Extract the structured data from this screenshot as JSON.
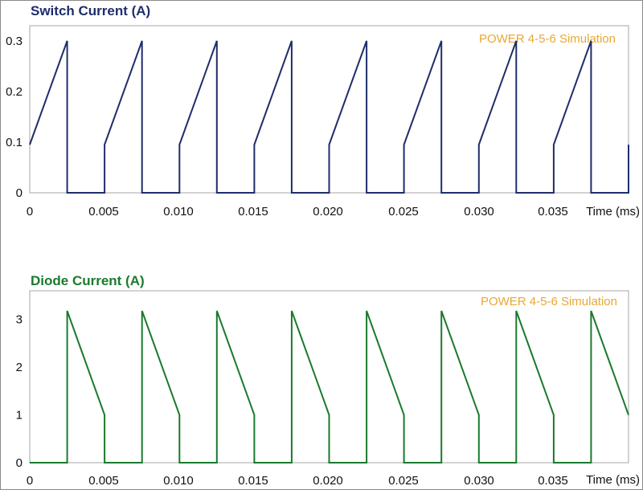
{
  "chart_data": [
    {
      "type": "line",
      "title": "Switch Current (A)",
      "watermark": "POWER 4-5-6 Simulation",
      "xlabel": "Time (ms)",
      "ylabel": "",
      "xlim": [
        0,
        0.04
      ],
      "ylim": [
        0,
        0.33
      ],
      "x_ticks": [
        "0",
        "0.005",
        "0.010",
        "0.015",
        "0.020",
        "0.025",
        "0.030",
        "0.035"
      ],
      "y_ticks": [
        "0",
        "0.1",
        "0.2",
        "0.3"
      ],
      "grid": false,
      "colors": {
        "title": "#1f2d6b",
        "line": "#1f2d6b",
        "watermark": "#e8a832"
      },
      "series": [
        {
          "points": [
            [
              0,
              0.095
            ],
            [
              0.0025,
              0.3
            ],
            [
              0.0025,
              0
            ],
            [
              0.005,
              0
            ],
            [
              0.005,
              0.095
            ],
            [
              0.0075,
              0.3
            ],
            [
              0.0075,
              0
            ],
            [
              0.01,
              0
            ],
            [
              0.01,
              0.095
            ],
            [
              0.0125,
              0.3
            ],
            [
              0.0125,
              0
            ],
            [
              0.015,
              0
            ],
            [
              0.015,
              0.095
            ],
            [
              0.0175,
              0.3
            ],
            [
              0.0175,
              0
            ],
            [
              0.02,
              0
            ],
            [
              0.02,
              0.095
            ],
            [
              0.0225,
              0.3
            ],
            [
              0.0225,
              0
            ],
            [
              0.025,
              0
            ],
            [
              0.025,
              0.095
            ],
            [
              0.0275,
              0.3
            ],
            [
              0.0275,
              0
            ],
            [
              0.03,
              0
            ],
            [
              0.03,
              0.095
            ],
            [
              0.0325,
              0.3
            ],
            [
              0.0325,
              0
            ],
            [
              0.035,
              0
            ],
            [
              0.035,
              0.095
            ],
            [
              0.0375,
              0.3
            ],
            [
              0.0375,
              0
            ],
            [
              0.04,
              0
            ],
            [
              0.04,
              0.095
            ]
          ]
        }
      ]
    },
    {
      "type": "line",
      "title": "Diode Current (A)",
      "watermark": "POWER 4-5-6 Simulation",
      "xlabel": "Time (ms)",
      "ylabel": "",
      "xlim": [
        0,
        0.04
      ],
      "ylim": [
        0,
        3.6
      ],
      "x_ticks": [
        "0",
        "0.005",
        "0.010",
        "0.015",
        "0.020",
        "0.025",
        "0.030",
        "0.035"
      ],
      "y_ticks": [
        "0",
        "1",
        "2",
        "3"
      ],
      "grid": false,
      "colors": {
        "title": "#1a7a2e",
        "line": "#1a7a2e",
        "watermark": "#e8a832"
      },
      "series": [
        {
          "points": [
            [
              0,
              0
            ],
            [
              0.0025,
              0
            ],
            [
              0.0025,
              3.18
            ],
            [
              0.005,
              1.0
            ],
            [
              0.005,
              0
            ],
            [
              0.0075,
              0
            ],
            [
              0.0075,
              3.18
            ],
            [
              0.01,
              1.0
            ],
            [
              0.01,
              0
            ],
            [
              0.0125,
              0
            ],
            [
              0.0125,
              3.18
            ],
            [
              0.015,
              1.0
            ],
            [
              0.015,
              0
            ],
            [
              0.0175,
              0
            ],
            [
              0.0175,
              3.18
            ],
            [
              0.02,
              1.0
            ],
            [
              0.02,
              0
            ],
            [
              0.0225,
              0
            ],
            [
              0.0225,
              3.18
            ],
            [
              0.025,
              1.0
            ],
            [
              0.025,
              0
            ],
            [
              0.0275,
              0
            ],
            [
              0.0275,
              3.18
            ],
            [
              0.03,
              1.0
            ],
            [
              0.03,
              0
            ],
            [
              0.0325,
              0
            ],
            [
              0.0325,
              3.18
            ],
            [
              0.035,
              1.0
            ],
            [
              0.035,
              0
            ],
            [
              0.0375,
              0
            ],
            [
              0.0375,
              3.18
            ],
            [
              0.04,
              1.0
            ]
          ]
        }
      ]
    }
  ]
}
